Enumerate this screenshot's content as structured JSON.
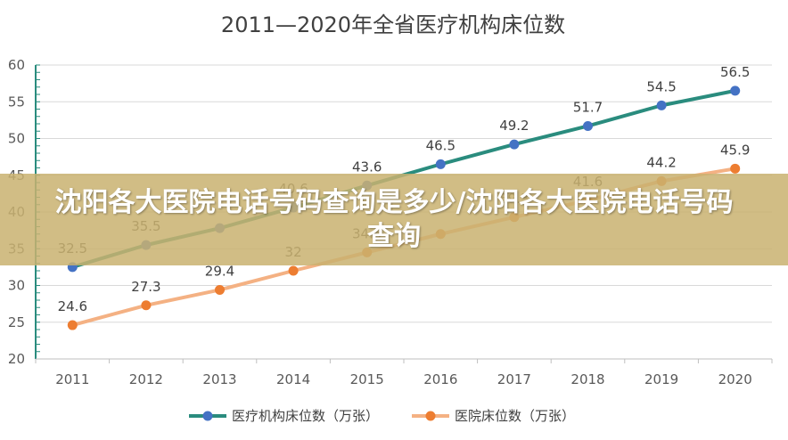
{
  "overlay_text": "沈阳各大医院电话号码查询是多少/沈阳各大医院电话号码查询",
  "chart_data": {
    "type": "line",
    "title": "2011—2020年全省医疗机构床位数",
    "categories": [
      "2011",
      "2012",
      "2013",
      "2014",
      "2015",
      "2016",
      "2017",
      "2018",
      "2019",
      "2020"
    ],
    "ylim": [
      20,
      60
    ],
    "yticks": [
      20,
      25,
      30,
      35,
      40,
      45,
      50,
      55,
      60
    ],
    "grid": true,
    "legend_position": "bottom",
    "series": [
      {
        "name": "医疗机构床位数（万张）",
        "color": "#2a8c7e",
        "marker_color": "#4472c4",
        "values": [
          32.5,
          35.5,
          37.8,
          40.6,
          43.6,
          46.5,
          49.2,
          51.7,
          54.5,
          56.5
        ],
        "labels": [
          "32.5",
          "35.5",
          "",
          "40.6",
          "43.6",
          "46.5",
          "49.2",
          "51.7",
          "54.5",
          "56.5"
        ]
      },
      {
        "name": "医院床位数（万张）",
        "color": "#f4b183",
        "marker_color": "#ed7d31",
        "values": [
          24.6,
          27.3,
          29.4,
          32,
          34.5,
          37,
          39.3,
          41.6,
          44.2,
          45.9
        ],
        "labels": [
          "24.6",
          "27.3",
          "29.4",
          "32",
          "34.5",
          "",
          "39.3",
          "41.6",
          "44.2",
          "45.9"
        ]
      }
    ]
  }
}
